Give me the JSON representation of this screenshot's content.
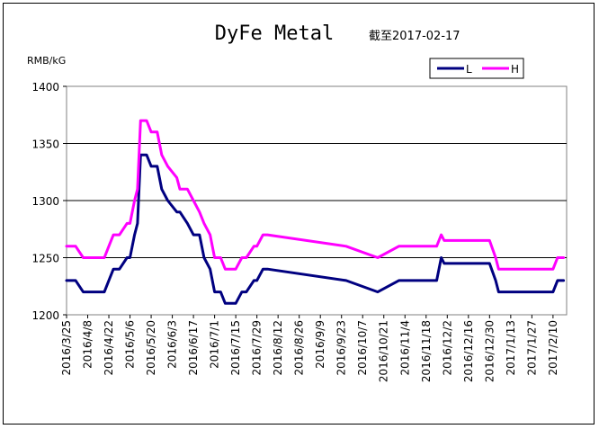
{
  "chart_data": {
    "type": "line",
    "title": "DyFe Metal",
    "subtitle": "截至2017-02-17",
    "ylabel": "RMB/kG",
    "xlabel": "",
    "ylim": [
      1200,
      1400
    ],
    "yticks": [
      1200,
      1250,
      1300,
      1350,
      1400
    ],
    "grid": "horizontal",
    "legend_position": "top-right",
    "x_tick_labels": [
      "2016/3/25",
      "2016/4/8",
      "2016/4/22",
      "2016/5/6",
      "2016/5/20",
      "2016/6/3",
      "2016/6/17",
      "2016/7/1",
      "2016/7/15",
      "2016/7/29",
      "2016/8/12",
      "2016/8/26",
      "2016/9/9",
      "2016/9/23",
      "2016/10/7",
      "2016/10/21",
      "2016/11/4",
      "2016/11/18",
      "2016/12/2",
      "2016/12/16",
      "2016/12/30",
      "2017/1/13",
      "2017/1/27",
      "2017/2/10"
    ],
    "x": [
      "2016-03-25",
      "2016-03-31",
      "2016-04-05",
      "2016-04-19",
      "2016-04-22",
      "2016-04-25",
      "2016-04-29",
      "2016-05-04",
      "2016-05-06",
      "2016-05-09",
      "2016-05-11",
      "2016-05-13",
      "2016-05-17",
      "2016-05-20",
      "2016-05-24",
      "2016-05-27",
      "2016-05-31",
      "2016-06-06",
      "2016-06-08",
      "2016-06-13",
      "2016-06-17",
      "2016-06-21",
      "2016-06-24",
      "2016-06-28",
      "2016-07-01",
      "2016-07-05",
      "2016-07-08",
      "2016-07-12",
      "2016-07-15",
      "2016-07-19",
      "2016-07-22",
      "2016-07-27",
      "2016-07-29",
      "2016-08-02",
      "2016-08-05",
      "2016-09-26",
      "2016-10-17",
      "2016-10-31",
      "2016-11-25",
      "2016-11-28",
      "2016-11-30",
      "2016-12-30",
      "2017-01-03",
      "2017-01-05",
      "2017-02-10",
      "2017-02-13",
      "2017-02-17"
    ],
    "series": [
      {
        "name": "L",
        "color": "#000080",
        "values": [
          1230,
          1230,
          1220,
          1220,
          1230,
          1240,
          1240,
          1250,
          1250,
          1270,
          1280,
          1340,
          1340,
          1330,
          1330,
          1310,
          1300,
          1290,
          1290,
          1280,
          1270,
          1270,
          1250,
          1240,
          1220,
          1220,
          1210,
          1210,
          1210,
          1220,
          1220,
          1230,
          1230,
          1240,
          1240,
          1230,
          1220,
          1230,
          1230,
          1250,
          1245,
          1245,
          1230,
          1220,
          1220,
          1230,
          1230
        ]
      },
      {
        "name": "H",
        "color": "#ff00ff",
        "values": [
          1260,
          1260,
          1250,
          1250,
          1260,
          1270,
          1270,
          1280,
          1280,
          1300,
          1310,
          1370,
          1370,
          1360,
          1360,
          1340,
          1330,
          1320,
          1310,
          1310,
          1300,
          1290,
          1280,
          1270,
          1250,
          1250,
          1240,
          1240,
          1240,
          1250,
          1250,
          1260,
          1260,
          1270,
          1270,
          1260,
          1250,
          1260,
          1260,
          1270,
          1265,
          1265,
          1250,
          1240,
          1240,
          1250,
          1250
        ]
      }
    ]
  }
}
